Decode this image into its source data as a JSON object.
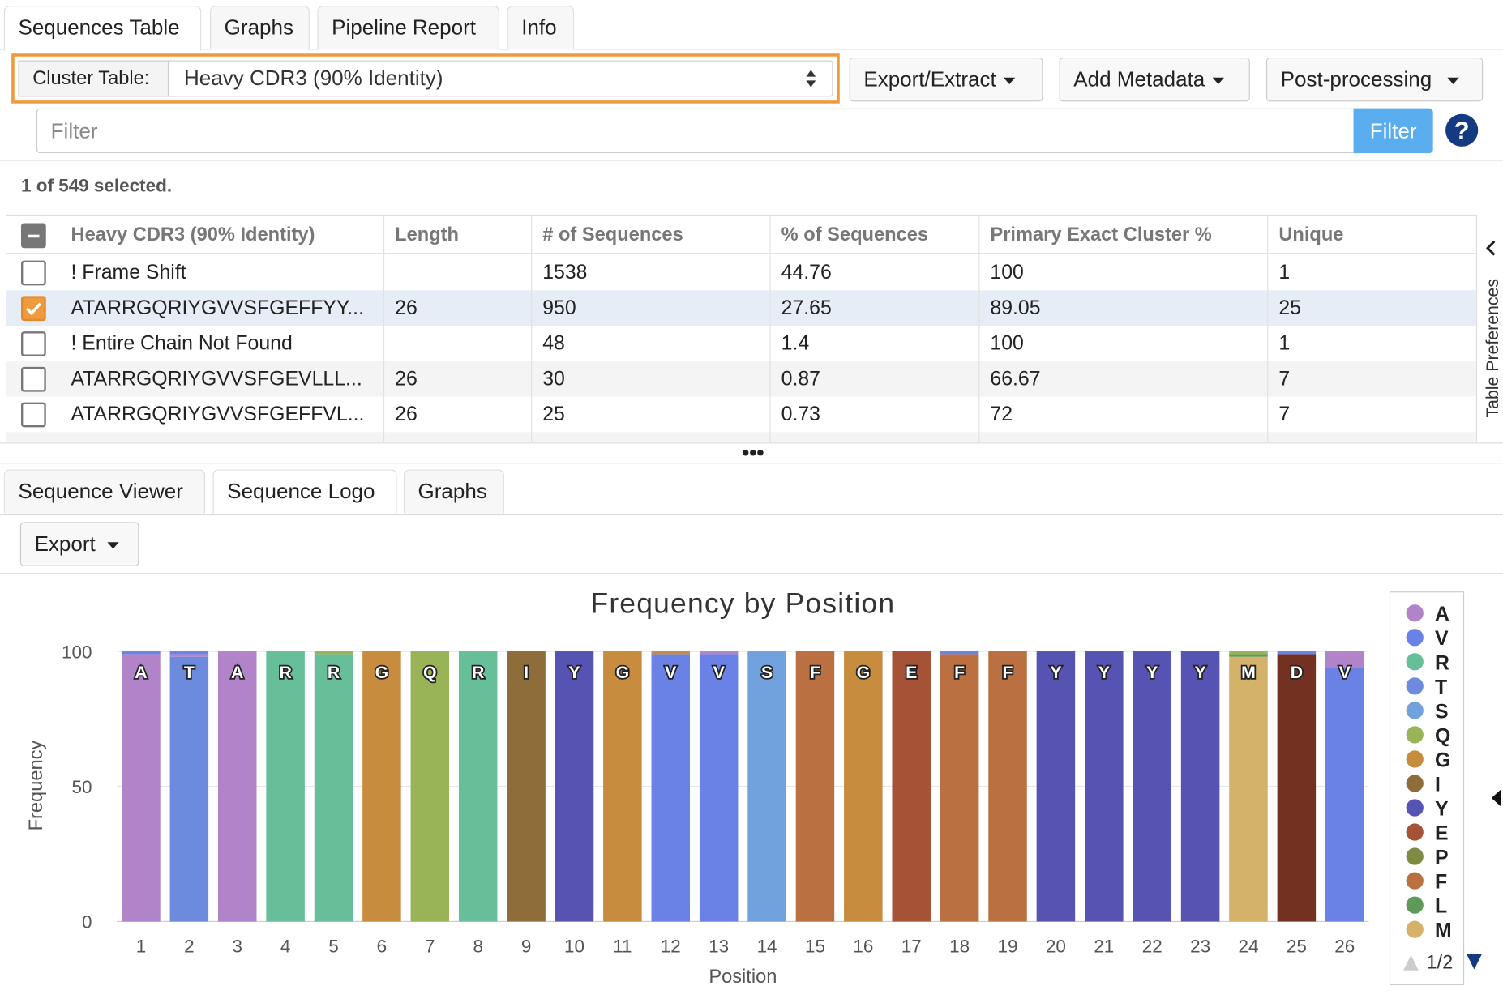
{
  "top_tabs": [
    "Sequences Table",
    "Graphs",
    "Pipeline Report",
    "Info"
  ],
  "active_top_tab": "Sequences Table",
  "cluster_table": {
    "label": "Cluster Table:",
    "value": "Heavy CDR3 (90% Identity)"
  },
  "toolbar": {
    "export_extract": "Export/Extract",
    "add_metadata": "Add Metadata",
    "post_processing": "Post-processing"
  },
  "filter": {
    "placeholder": "Filter",
    "button": "Filter",
    "help": "?"
  },
  "selection_status": "1 of 549 selected.",
  "table": {
    "columns": [
      "Heavy CDR3 (90% Identity)",
      "Length",
      "# of Sequences",
      "% of Sequences",
      "Primary Exact Cluster %",
      "Unique"
    ],
    "rows": [
      {
        "checked": false,
        "name": "! Frame Shift",
        "length": "",
        "num": "1538",
        "pct": "44.76",
        "primary": "100",
        "unique": "1"
      },
      {
        "checked": true,
        "name": "ATARRGQRIYGVVSFGEFFYY...",
        "length": "26",
        "num": "950",
        "pct": "27.65",
        "primary": "89.05",
        "unique": "25"
      },
      {
        "checked": false,
        "name": "! Entire Chain Not Found",
        "length": "",
        "num": "48",
        "pct": "1.4",
        "primary": "100",
        "unique": "1"
      },
      {
        "checked": false,
        "name": "ATARRGQRIYGVVSFGEVLLL...",
        "length": "26",
        "num": "30",
        "pct": "0.87",
        "primary": "66.67",
        "unique": "7"
      },
      {
        "checked": false,
        "name": "ATARRGQRIYGVVSFGEFFVL...",
        "length": "26",
        "num": "25",
        "pct": "0.73",
        "primary": "72",
        "unique": "7"
      }
    ]
  },
  "table_preferences": "Table Preferences",
  "splitter_dots": "•••",
  "bottom_tabs": [
    "Sequence Viewer",
    "Sequence Logo",
    "Graphs"
  ],
  "active_bottom_tab": "Sequence Logo",
  "export_button": "Export",
  "legend_page": "1/2",
  "colors": {
    "accent_orange": "#f09a3e",
    "filter_blue": "#5aaeef",
    "help_navy": "#143b82",
    "selected_row": "#e6edf7",
    "A": "#b184c9",
    "V": "#6a82e6",
    "R": "#67bf9a",
    "T": "#6c8bde",
    "S": "#72a2de",
    "Q": "#98b456",
    "G": "#c88c3e",
    "I": "#8e6d3a",
    "Y": "#5653b3",
    "E": "#a55236",
    "P": "#7f8a42",
    "F": "#ba7040",
    "L": "#5e9b5a",
    "M": "#d4b26a",
    "D": "#733122"
  },
  "chart_data": {
    "type": "bar",
    "stacked": true,
    "title": "Frequency by Position",
    "xlabel": "Position",
    "ylabel": "Frequency",
    "ylim": [
      0,
      100
    ],
    "yticks": [
      0,
      50,
      100
    ],
    "grid": true,
    "legend_position": "right",
    "legend": [
      "A",
      "V",
      "R",
      "T",
      "S",
      "Q",
      "G",
      "I",
      "Y",
      "E",
      "P",
      "F",
      "L",
      "M"
    ],
    "categories": [
      "1",
      "2",
      "3",
      "4",
      "5",
      "6",
      "7",
      "8",
      "9",
      "10",
      "11",
      "12",
      "13",
      "14",
      "15",
      "16",
      "17",
      "18",
      "19",
      "20",
      "21",
      "22",
      "23",
      "24",
      "25",
      "26"
    ],
    "dominant_residue": [
      "A",
      "T",
      "A",
      "R",
      "R",
      "G",
      "Q",
      "R",
      "I",
      "Y",
      "G",
      "V",
      "V",
      "S",
      "F",
      "G",
      "E",
      "F",
      "F",
      "Y",
      "Y",
      "Y",
      "Y",
      "M",
      "D",
      "V"
    ],
    "stacks": [
      [
        {
          "r": "A",
          "v": 99
        },
        {
          "r": "V",
          "v": 1
        }
      ],
      [
        {
          "r": "T",
          "v": 98
        },
        {
          "r": "A",
          "v": 1
        },
        {
          "r": "V",
          "v": 1
        }
      ],
      [
        {
          "r": "A",
          "v": 100
        }
      ],
      [
        {
          "r": "R",
          "v": 100
        }
      ],
      [
        {
          "r": "R",
          "v": 99
        },
        {
          "r": "Q",
          "v": 1
        }
      ],
      [
        {
          "r": "G",
          "v": 100
        }
      ],
      [
        {
          "r": "Q",
          "v": 100
        }
      ],
      [
        {
          "r": "R",
          "v": 100
        }
      ],
      [
        {
          "r": "I",
          "v": 100
        }
      ],
      [
        {
          "r": "Y",
          "v": 100
        }
      ],
      [
        {
          "r": "G",
          "v": 100
        }
      ],
      [
        {
          "r": "V",
          "v": 99
        },
        {
          "r": "G",
          "v": 1
        }
      ],
      [
        {
          "r": "V",
          "v": 99
        },
        {
          "r": "A",
          "v": 1
        }
      ],
      [
        {
          "r": "S",
          "v": 100
        }
      ],
      [
        {
          "r": "F",
          "v": 100
        }
      ],
      [
        {
          "r": "G",
          "v": 100
        }
      ],
      [
        {
          "r": "E",
          "v": 100
        }
      ],
      [
        {
          "r": "F",
          "v": 99
        },
        {
          "r": "V",
          "v": 1
        }
      ],
      [
        {
          "r": "F",
          "v": 100
        }
      ],
      [
        {
          "r": "Y",
          "v": 100
        }
      ],
      [
        {
          "r": "Y",
          "v": 100
        }
      ],
      [
        {
          "r": "Y",
          "v": 100
        }
      ],
      [
        {
          "r": "Y",
          "v": 100
        }
      ],
      [
        {
          "r": "M",
          "v": 98
        },
        {
          "r": "L",
          "v": 1
        },
        {
          "r": "Q",
          "v": 1
        }
      ],
      [
        {
          "r": "D",
          "v": 99
        },
        {
          "r": "V",
          "v": 1
        }
      ],
      [
        {
          "r": "V",
          "v": 94
        },
        {
          "r": "A",
          "v": 6
        }
      ]
    ]
  }
}
